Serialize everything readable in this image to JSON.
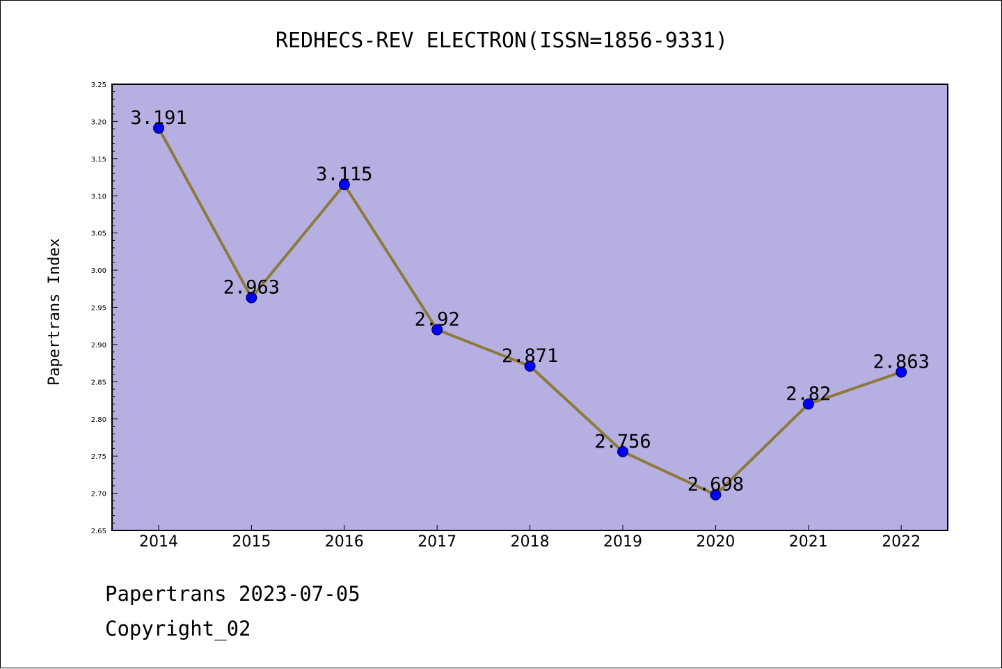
{
  "chart_data": {
    "type": "line",
    "title": "REDHECS-REV ELECTRON(ISSN=1856-9331)",
    "xlabel": "",
    "ylabel": "Papertrans Index",
    "categories": [
      "2014",
      "2015",
      "2016",
      "2017",
      "2018",
      "2019",
      "2020",
      "2021",
      "2022"
    ],
    "series": [
      {
        "values": [
          3.191,
          2.963,
          3.115,
          2.92,
          2.871,
          2.756,
          2.698,
          2.82,
          2.863
        ],
        "labels": [
          "3.191",
          "2.963",
          "3.115",
          "2.92",
          "2.871",
          "2.756",
          "2.698",
          "2.82",
          "2.863"
        ]
      }
    ],
    "ylim": [
      2.65,
      3.25
    ],
    "yticks": [
      "2.65",
      "2.70",
      "2.75",
      "2.80",
      "2.85",
      "2.90",
      "2.95",
      "3.00",
      "3.05",
      "3.10",
      "3.15",
      "3.20",
      "3.25"
    ],
    "grid": false,
    "colors": {
      "plot_background": "#b5afe2",
      "line": "#8c7a3a",
      "marker": "#0000ff"
    }
  },
  "footer": {
    "line1": "Papertrans 2023-07-05",
    "line2": "Copyright_02"
  }
}
